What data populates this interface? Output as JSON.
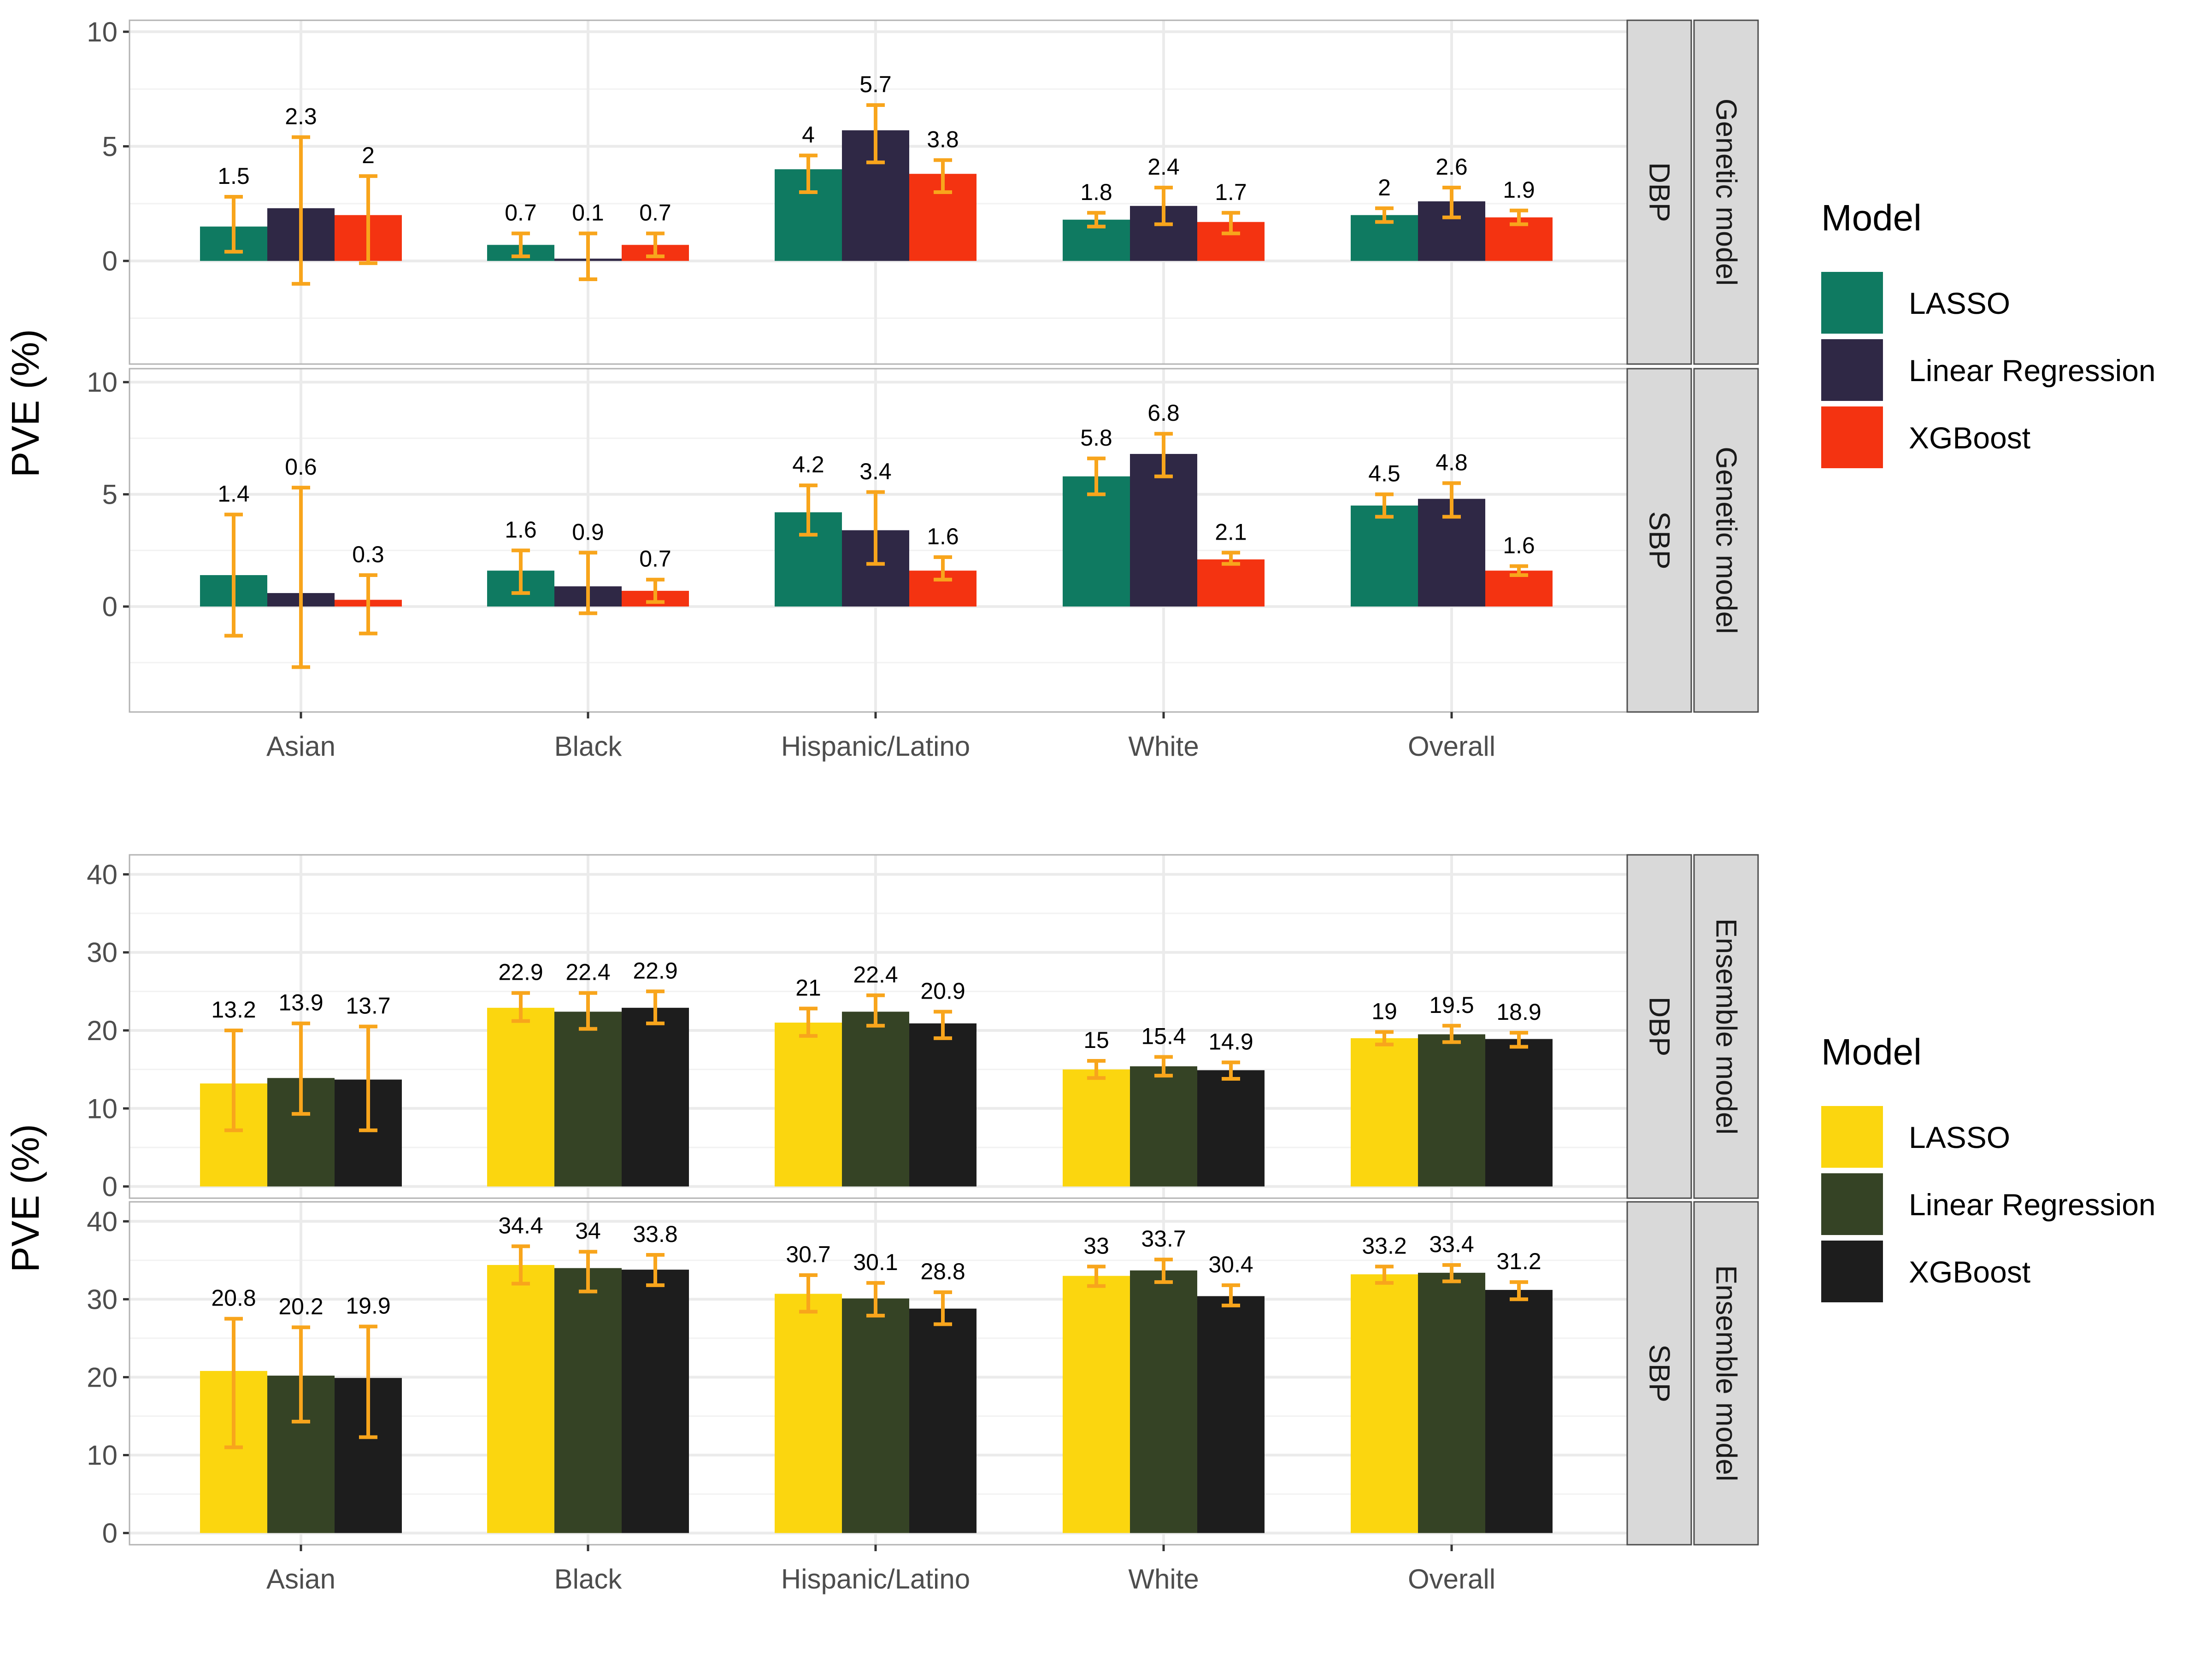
{
  "chart_data": [
    {
      "type": "bar",
      "figure": "top",
      "ylabel": "PVE (%)",
      "categories": [
        "Asian",
        "Black",
        "Hispanic/Latino",
        "White",
        "Overall"
      ],
      "strip_outer": "Genetic model",
      "legend": {
        "title": "Model",
        "placement": "right"
      },
      "series_colors": [
        "#0f7a61",
        "#2f2845",
        "#f43311"
      ],
      "error_bar_color": "#f8a51c",
      "grid": true,
      "panels": [
        {
          "strip": "DBP",
          "ylim": [
            -4.5,
            10.5
          ],
          "yticks": [
            0,
            5,
            10
          ],
          "series": [
            {
              "name": "LASSO",
              "values": [
                1.5,
                0.7,
                4,
                1.8,
                2
              ],
              "labels": [
                "1.5",
                "0.7",
                "4",
                "1.8",
                "2"
              ],
              "ci_low": [
                0.4,
                0.2,
                3.0,
                1.5,
                1.7
              ],
              "ci_high": [
                2.8,
                1.2,
                4.6,
                2.1,
                2.3
              ]
            },
            {
              "name": "Linear Regression",
              "values": [
                2.3,
                0.1,
                5.7,
                2.4,
                2.6
              ],
              "labels": [
                "2.3",
                "0.1",
                "5.7",
                "2.4",
                "2.6"
              ],
              "ci_low": [
                -1.0,
                -0.8,
                4.3,
                1.6,
                1.9
              ],
              "ci_high": [
                5.4,
                1.2,
                6.8,
                3.2,
                3.2
              ]
            },
            {
              "name": "XGBoost",
              "values": [
                2,
                0.7,
                3.8,
                1.7,
                1.9
              ],
              "labels": [
                "2",
                "0.7",
                "3.8",
                "1.7",
                "1.9"
              ],
              "ci_low": [
                -0.1,
                0.2,
                3.0,
                1.2,
                1.6
              ],
              "ci_high": [
                3.7,
                1.2,
                4.4,
                2.1,
                2.2
              ]
            }
          ]
        },
        {
          "strip": "SBP",
          "ylim": [
            -4.7,
            10.6
          ],
          "yticks": [
            0,
            5,
            10
          ],
          "series": [
            {
              "name": "LASSO",
              "values": [
                1.4,
                1.6,
                4.2,
                5.8,
                4.5
              ],
              "labels": [
                "1.4",
                "1.6",
                "4.2",
                "5.8",
                "4.5"
              ],
              "ci_low": [
                -1.3,
                0.6,
                3.2,
                5.0,
                4.0
              ],
              "ci_high": [
                4.1,
                2.5,
                5.4,
                6.6,
                5.0
              ]
            },
            {
              "name": "Linear Regression",
              "values": [
                0.6,
                0.9,
                3.4,
                6.8,
                4.8
              ],
              "labels": [
                "0.6",
                "0.9",
                "3.4",
                "6.8",
                "4.8"
              ],
              "ci_low": [
                -2.7,
                -0.3,
                1.9,
                5.8,
                4.0
              ],
              "ci_high": [
                5.3,
                2.4,
                5.1,
                7.7,
                5.5
              ]
            },
            {
              "name": "XGBoost",
              "values": [
                0.3,
                0.7,
                1.6,
                2.1,
                1.6
              ],
              "labels": [
                "0.3",
                "0.7",
                "1.6",
                "2.1",
                "1.6"
              ],
              "ci_low": [
                -1.2,
                0.2,
                1.2,
                1.9,
                1.4
              ],
              "ci_high": [
                1.4,
                1.2,
                2.2,
                2.4,
                1.8
              ]
            }
          ]
        }
      ]
    },
    {
      "type": "bar",
      "figure": "bottom",
      "ylabel": "PVE (%)",
      "categories": [
        "Asian",
        "Black",
        "Hispanic/Latino",
        "White",
        "Overall"
      ],
      "strip_outer": "Ensemble model",
      "legend": {
        "title": "Model",
        "placement": "right"
      },
      "series_colors": [
        "#fbd60f",
        "#354325",
        "#1d1d1d"
      ],
      "error_bar_color": "#f8a51c",
      "grid": true,
      "panels": [
        {
          "strip": "DBP",
          "ylim": [
            -1.5,
            42.5
          ],
          "yticks": [
            0,
            10,
            20,
            30,
            40
          ],
          "series": [
            {
              "name": "LASSO",
              "values": [
                13.2,
                22.9,
                21,
                15,
                19
              ],
              "labels": [
                "13.2",
                "22.9",
                "21",
                "15",
                "19"
              ],
              "ci_low": [
                7.2,
                21.2,
                19.3,
                13.9,
                18.2
              ],
              "ci_high": [
                20.0,
                24.8,
                22.8,
                16.1,
                19.8
              ]
            },
            {
              "name": "Linear Regression",
              "values": [
                13.9,
                22.4,
                22.4,
                15.4,
                19.5
              ],
              "labels": [
                "13.9",
                "22.4",
                "22.4",
                "15.4",
                "19.5"
              ],
              "ci_low": [
                9.3,
                20.2,
                20.6,
                14.2,
                18.5
              ],
              "ci_high": [
                20.9,
                24.8,
                24.5,
                16.6,
                20.6
              ]
            },
            {
              "name": "XGBoost",
              "values": [
                13.7,
                22.9,
                20.9,
                14.9,
                18.9
              ],
              "labels": [
                "13.7",
                "22.9",
                "20.9",
                "14.9",
                "18.9"
              ],
              "ci_low": [
                7.2,
                20.9,
                19.0,
                13.8,
                17.9
              ],
              "ci_high": [
                20.5,
                25.0,
                22.4,
                15.9,
                19.7
              ]
            }
          ]
        },
        {
          "strip": "SBP",
          "ylim": [
            -1.5,
            42.5
          ],
          "yticks": [
            0,
            10,
            20,
            30,
            40
          ],
          "series": [
            {
              "name": "LASSO",
              "values": [
                20.8,
                34.4,
                30.7,
                33,
                33.2
              ],
              "labels": [
                "20.8",
                "34.4",
                "30.7",
                "33",
                "33.2"
              ],
              "ci_low": [
                11.0,
                32.0,
                28.4,
                31.7,
                32.1
              ],
              "ci_high": [
                27.5,
                36.8,
                33.1,
                34.2,
                34.2
              ]
            },
            {
              "name": "Linear Regression",
              "values": [
                20.2,
                34,
                30.1,
                33.7,
                33.4
              ],
              "labels": [
                "20.2",
                "34",
                "30.1",
                "33.7",
                "33.4"
              ],
              "ci_low": [
                14.3,
                31.0,
                27.9,
                32.2,
                32.3
              ],
              "ci_high": [
                26.4,
                36.1,
                32.1,
                35.1,
                34.4
              ]
            },
            {
              "name": "XGBoost",
              "values": [
                19.9,
                33.8,
                28.8,
                30.4,
                31.2
              ],
              "labels": [
                "19.9",
                "33.8",
                "28.8",
                "30.4",
                "31.2"
              ],
              "ci_low": [
                12.3,
                31.8,
                26.8,
                29.2,
                30.0
              ],
              "ci_high": [
                26.5,
                35.7,
                30.9,
                31.8,
                32.2
              ]
            }
          ]
        }
      ]
    }
  ]
}
